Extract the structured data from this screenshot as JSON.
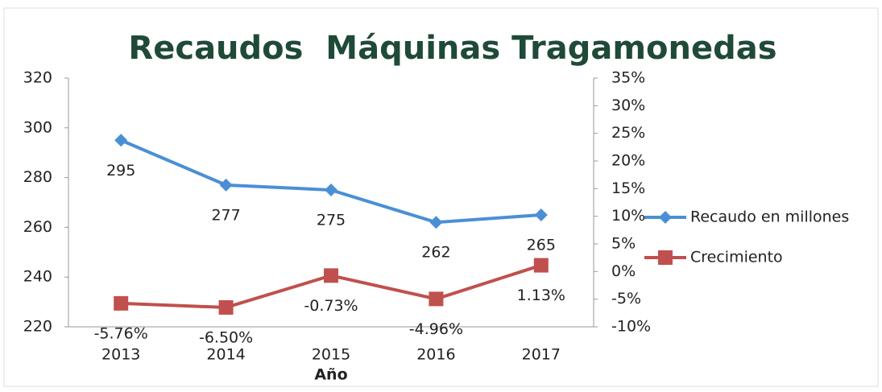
{
  "chart_data": {
    "type": "line",
    "title": "Recaudos  Máquinas Tragamonedas",
    "x_label": "Año",
    "categories": [
      "2013",
      "2014",
      "2015",
      "2016",
      "2017"
    ],
    "series": [
      {
        "name": "Recaudo en millones",
        "color": "#4a8fd6",
        "marker": "diamond",
        "values": [
          295,
          277,
          275,
          262,
          265
        ]
      },
      {
        "name": "Crecimiento",
        "color": "#c0504d",
        "marker": "square",
        "axis": "y2",
        "values": [
          -5.76,
          -6.5,
          -0.73,
          -4.96,
          1.13
        ],
        "value_labels": [
          "-5.76%",
          "-6.50%",
          "-0.73%",
          "-4.96%",
          "1.13%"
        ]
      }
    ],
    "ylim": [
      220,
      320
    ],
    "yticks": [
      220,
      240,
      260,
      280,
      300,
      320
    ],
    "y2lim": [
      -10,
      35
    ],
    "y2ticks": [
      {
        "value": -10,
        "label": "-10%"
      },
      {
        "value": -5,
        "label": "-5%"
      },
      {
        "value": 0,
        "label": "0%"
      },
      {
        "value": 5,
        "label": "5%"
      },
      {
        "value": 10,
        "label": "10%"
      },
      {
        "value": 15,
        "label": "15%"
      },
      {
        "value": 20,
        "label": "20%"
      },
      {
        "value": 25,
        "label": "25%"
      },
      {
        "value": 30,
        "label": "30%"
      },
      {
        "value": 35,
        "label": "35%"
      }
    ],
    "legend": "right",
    "grid": false
  }
}
